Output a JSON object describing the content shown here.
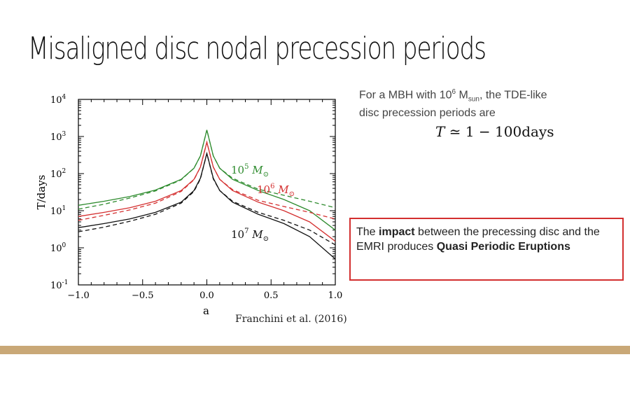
{
  "slide": {
    "title": "Misaligned disc nodal precession periods",
    "intro_line1": "For a MBH with 10",
    "intro_sup": "6",
    "intro_msun": " M",
    "intro_sub": "sun",
    "intro_line1_end": ", the TDE-like",
    "intro_line2": "disc precession periods are",
    "formula_T": "T",
    "formula_rest": " ≃ 1 − 100days",
    "callout_pre": "The ",
    "callout_bold1": "impact",
    "callout_mid": " between the precessing disc and the EMRI produces ",
    "callout_bold2": "Quasi Periodic Eruptions",
    "citation": "Franchini et al. (2016)"
  },
  "colors": {
    "accent_bar": "#c9a877",
    "callout_border": "#d32f2f"
  },
  "chart_data": {
    "type": "line",
    "xlabel": "a",
    "ylabel": "T/days",
    "xlim": [
      -1.0,
      1.0
    ],
    "ylim": [
      0.1,
      10000
    ],
    "yscale": "log",
    "x_ticks": [
      "−1.0",
      "−0.5",
      "0.0",
      "0.5",
      "1.0"
    ],
    "y_ticks": [
      {
        "base": "10",
        "exp": "-1"
      },
      {
        "base": "10",
        "exp": "0"
      },
      {
        "base": "10",
        "exp": "1"
      },
      {
        "base": "10",
        "exp": "2"
      },
      {
        "base": "10",
        "exp": "3"
      },
      {
        "base": "10",
        "exp": "4"
      }
    ],
    "annotations": [
      {
        "base": "10",
        "exp": "5",
        "unit": " M",
        "sym": "⊙",
        "color": "#2e8b2e"
      },
      {
        "base": "10",
        "exp": "6",
        "unit": " M",
        "sym": "⊙",
        "color": "#d43030"
      },
      {
        "base": "10",
        "exp": "7",
        "unit": " M",
        "sym": "⊙",
        "color": "#111111"
      }
    ],
    "series": [
      {
        "color": "#2e8b2e",
        "style": "solid",
        "points": [
          [
            -1.0,
            14
          ],
          [
            -0.8,
            18
          ],
          [
            -0.6,
            24
          ],
          [
            -0.4,
            36
          ],
          [
            -0.2,
            70
          ],
          [
            -0.1,
            140
          ],
          [
            -0.05,
            300
          ],
          [
            0.0,
            1500
          ],
          [
            0.05,
            300
          ],
          [
            0.1,
            140
          ],
          [
            0.2,
            70
          ],
          [
            0.4,
            35
          ],
          [
            0.6,
            20
          ],
          [
            0.8,
            10
          ],
          [
            1.0,
            3
          ]
        ]
      },
      {
        "color": "#2e8b2e",
        "style": "dashed",
        "points": [
          [
            -1.0,
            11
          ],
          [
            -0.8,
            15
          ],
          [
            -0.6,
            22
          ],
          [
            -0.4,
            34
          ],
          [
            -0.2,
            68
          ],
          [
            -0.1,
            140
          ],
          [
            -0.05,
            300
          ],
          [
            0.0,
            1500
          ],
          [
            0.05,
            300
          ],
          [
            0.1,
            140
          ],
          [
            0.2,
            75
          ],
          [
            0.4,
            38
          ],
          [
            0.6,
            26
          ],
          [
            0.8,
            18
          ],
          [
            1.0,
            12
          ]
        ]
      },
      {
        "color": "#d43030",
        "style": "solid",
        "points": [
          [
            -1.0,
            7
          ],
          [
            -0.8,
            9
          ],
          [
            -0.6,
            12
          ],
          [
            -0.4,
            18
          ],
          [
            -0.2,
            35
          ],
          [
            -0.1,
            70
          ],
          [
            -0.05,
            150
          ],
          [
            0.0,
            700
          ],
          [
            0.05,
            150
          ],
          [
            0.1,
            70
          ],
          [
            0.2,
            35
          ],
          [
            0.4,
            17
          ],
          [
            0.6,
            10
          ],
          [
            0.8,
            5
          ],
          [
            1.0,
            1.5
          ]
        ]
      },
      {
        "color": "#d43030",
        "style": "dashed",
        "points": [
          [
            -1.0,
            5.5
          ],
          [
            -0.8,
            7.5
          ],
          [
            -0.6,
            10.5
          ],
          [
            -0.4,
            16
          ],
          [
            -0.2,
            33
          ],
          [
            -0.1,
            68
          ],
          [
            -0.05,
            150
          ],
          [
            0.0,
            700
          ],
          [
            0.05,
            150
          ],
          [
            0.1,
            70
          ],
          [
            0.2,
            37
          ],
          [
            0.4,
            19
          ],
          [
            0.6,
            13
          ],
          [
            0.8,
            9
          ],
          [
            1.0,
            6
          ]
        ]
      },
      {
        "color": "#111111",
        "style": "solid",
        "points": [
          [
            -1.0,
            3.5
          ],
          [
            -0.8,
            4.5
          ],
          [
            -0.6,
            6
          ],
          [
            -0.4,
            9
          ],
          [
            -0.2,
            17
          ],
          [
            -0.1,
            35
          ],
          [
            -0.05,
            75
          ],
          [
            0.0,
            350
          ],
          [
            0.05,
            75
          ],
          [
            0.1,
            35
          ],
          [
            0.2,
            17
          ],
          [
            0.4,
            8
          ],
          [
            0.6,
            4.5
          ],
          [
            0.8,
            2
          ],
          [
            1.0,
            0.5
          ]
        ]
      },
      {
        "color": "#111111",
        "style": "dashed",
        "points": [
          [
            -1.0,
            2.7
          ],
          [
            -0.8,
            3.6
          ],
          [
            -0.6,
            5.2
          ],
          [
            -0.4,
            8
          ],
          [
            -0.2,
            16
          ],
          [
            -0.1,
            33
          ],
          [
            -0.05,
            72
          ],
          [
            0.0,
            350
          ],
          [
            0.05,
            72
          ],
          [
            0.1,
            35
          ],
          [
            0.2,
            18
          ],
          [
            0.4,
            9
          ],
          [
            0.6,
            5.5
          ],
          [
            0.8,
            3
          ],
          [
            1.0,
            1.2
          ]
        ]
      }
    ]
  }
}
